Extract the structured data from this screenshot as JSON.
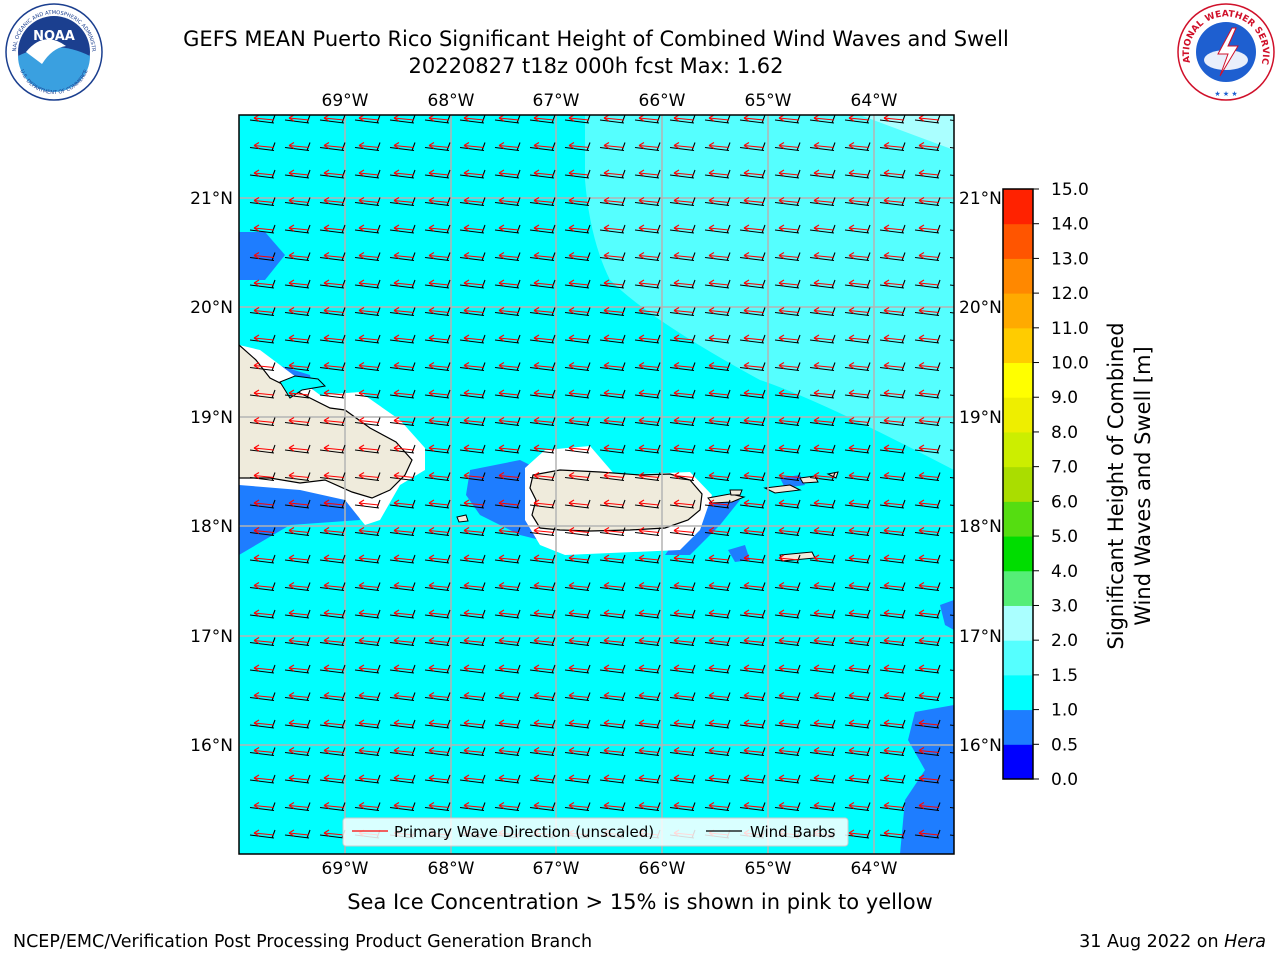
{
  "header": {
    "title_line1": "GEFS MEAN Puerto Rico Significant Height of Combined Wind Waves and Swell",
    "title_line2": "20220827 t18z 000h fcst   Max: 1.62"
  },
  "logos": {
    "noaa_text": "NOAA",
    "noaa_ring_top": "NATIONAL OCEANIC AND ATMOSPHERIC ADMINISTRATION",
    "noaa_ring_bottom": "U.S. DEPARTMENT OF COMMERCE",
    "nws_ring": "NATIONAL WEATHER SERVICE"
  },
  "map": {
    "lon_labels": [
      "69°W",
      "68°W",
      "67°W",
      "66°W",
      "65°W",
      "64°W"
    ],
    "lat_labels": [
      "21°N",
      "20°N",
      "19°N",
      "18°N",
      "17°N",
      "16°N"
    ],
    "legend": {
      "wave_direction": "Primary Wave Direction (unscaled)",
      "wind_barbs": "Wind Barbs"
    },
    "colors": {
      "ocean_main": "#00ffff",
      "ocean_light": "#aaffff",
      "ocean_mid": "#55ffff",
      "low_wave": "#1e7dff",
      "land": "#efebdc",
      "wave_arrow": "#ff0000",
      "wind_barb": "#000000",
      "grid": "#b4b4b4"
    }
  },
  "colorbar": {
    "label_line1": "Significant Height of Combined",
    "label_line2": "Wind Waves and Swell [m]",
    "ticks": [
      "0.0",
      "0.5",
      "1.0",
      "1.5",
      "2.0",
      "3.0",
      "4.0",
      "5.0",
      "6.0",
      "7.0",
      "8.0",
      "9.0",
      "10.0",
      "11.0",
      "12.0",
      "13.0",
      "14.0",
      "15.0"
    ],
    "colors": [
      "#0000ff",
      "#1e7dff",
      "#00ffff",
      "#55ffff",
      "#aaffff",
      "#55ee77",
      "#00dd00",
      "#55dd11",
      "#aadd00",
      "#ccee00",
      "#eeee00",
      "#ffff00",
      "#ffcc00",
      "#ffaa00",
      "#ff8800",
      "#ff5500",
      "#ff2200"
    ]
  },
  "note": "Sea Ice Concentration > 15% is shown in pink to yellow",
  "footer": {
    "left": "NCEP/EMC/Verification Post Processing Product Generation Branch",
    "right_date": "31 Aug 2022 on ",
    "right_host": "Hera"
  }
}
